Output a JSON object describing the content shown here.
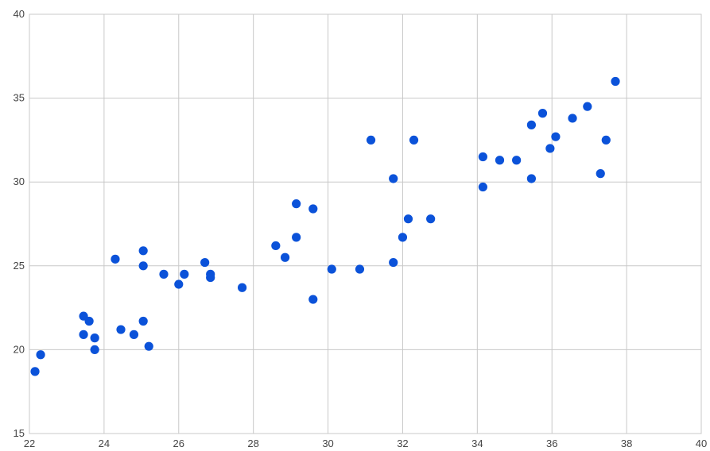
{
  "chart_data": {
    "type": "scatter",
    "title": "",
    "xlabel": "",
    "ylabel": "",
    "xlim": [
      22,
      40
    ],
    "ylim": [
      15,
      40
    ],
    "x_ticks": [
      22,
      24,
      26,
      28,
      30,
      32,
      34,
      36,
      38,
      40
    ],
    "y_ticks": [
      15,
      20,
      25,
      30,
      35,
      40
    ],
    "grid": true,
    "legend": "none",
    "marker_color": "#0b52d9",
    "grid_color": "#c8c8c8",
    "series": [
      {
        "points": [
          [
            22.15,
            18.7
          ],
          [
            22.3,
            19.7
          ],
          [
            23.45,
            22.0
          ],
          [
            23.6,
            21.7
          ],
          [
            23.45,
            20.9
          ],
          [
            23.75,
            20.7
          ],
          [
            23.75,
            20.0
          ],
          [
            24.3,
            25.4
          ],
          [
            24.45,
            21.2
          ],
          [
            24.8,
            20.9
          ],
          [
            25.05,
            21.7
          ],
          [
            25.2,
            20.2
          ],
          [
            25.05,
            25.9
          ],
          [
            25.05,
            25.0
          ],
          [
            25.6,
            24.5
          ],
          [
            26.0,
            23.9
          ],
          [
            26.15,
            24.5
          ],
          [
            26.7,
            25.2
          ],
          [
            26.85,
            24.5
          ],
          [
            26.85,
            24.3
          ],
          [
            27.7,
            23.7
          ],
          [
            28.6,
            26.2
          ],
          [
            28.85,
            25.5
          ],
          [
            29.15,
            28.7
          ],
          [
            29.15,
            26.7
          ],
          [
            29.6,
            28.4
          ],
          [
            29.6,
            23.0
          ],
          [
            30.1,
            24.8
          ],
          [
            30.85,
            24.8
          ],
          [
            31.15,
            32.5
          ],
          [
            31.75,
            30.2
          ],
          [
            31.75,
            25.2
          ],
          [
            32.0,
            26.7
          ],
          [
            32.15,
            27.8
          ],
          [
            32.3,
            32.5
          ],
          [
            32.75,
            27.8
          ],
          [
            34.15,
            31.5
          ],
          [
            34.15,
            29.7
          ],
          [
            34.6,
            31.3
          ],
          [
            35.05,
            31.3
          ],
          [
            35.45,
            33.4
          ],
          [
            35.45,
            30.2
          ],
          [
            35.75,
            34.1
          ],
          [
            35.95,
            32.0
          ],
          [
            36.1,
            32.7
          ],
          [
            36.55,
            33.8
          ],
          [
            36.95,
            34.5
          ],
          [
            37.3,
            30.5
          ],
          [
            37.45,
            32.5
          ],
          [
            37.7,
            36.0
          ]
        ]
      }
    ]
  }
}
